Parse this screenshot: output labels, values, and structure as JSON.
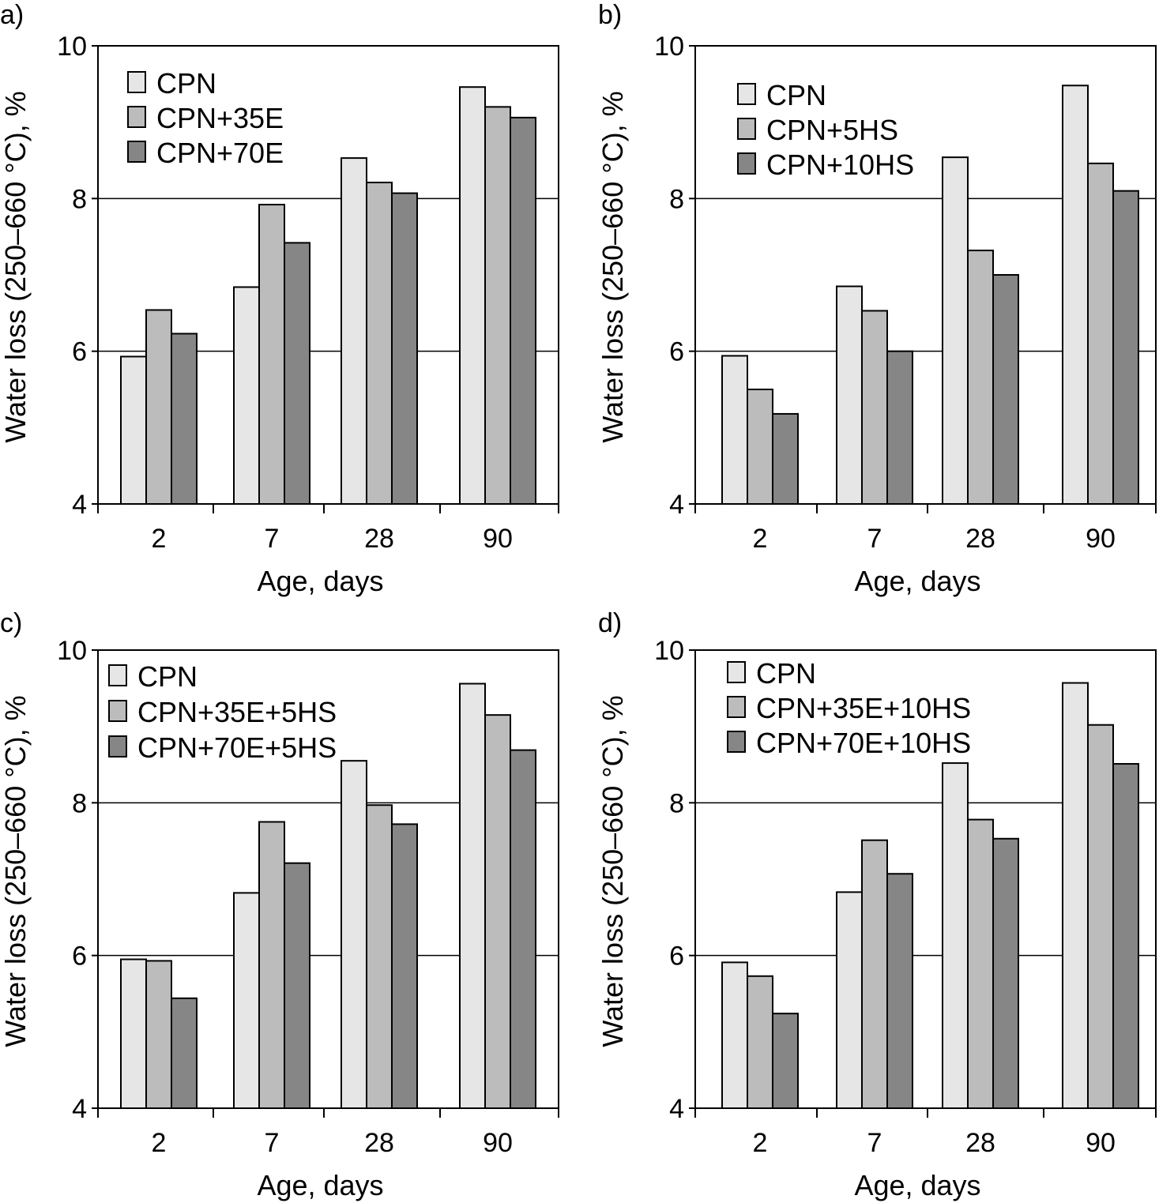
{
  "colors": {
    "series": [
      "#e6e6e6",
      "#bcbcbc",
      "#868686"
    ],
    "stroke": "#000000",
    "background": "#ffffff"
  },
  "chart_data": [
    {
      "panel_label": "a)",
      "type": "bar",
      "xlabel": "Age, days",
      "ylabel": "Water loss (250–660 °C), %",
      "ylim": [
        4,
        10
      ],
      "yticks": [
        "4",
        "6",
        "8",
        "10"
      ],
      "grid": "horizontal at 6 and 8",
      "legend_position": "top-left",
      "categories": [
        "2",
        "7",
        "28",
        "90"
      ],
      "series": [
        {
          "name": "CPN",
          "values": [
            5.93,
            6.84,
            8.53,
            9.46
          ]
        },
        {
          "name": "CPN+35E",
          "values": [
            6.54,
            7.92,
            8.21,
            9.2
          ]
        },
        {
          "name": "CPN+70E",
          "values": [
            6.23,
            7.42,
            8.07,
            9.06
          ]
        }
      ]
    },
    {
      "panel_label": "b)",
      "type": "bar",
      "xlabel": "Age, days",
      "ylabel": "Water loss (250–660 °C), %",
      "ylim": [
        4,
        10
      ],
      "yticks": [
        "4",
        "6",
        "8",
        "10"
      ],
      "grid": "horizontal at 6 and 8",
      "legend_position": "top-left",
      "categories": [
        "2",
        "7",
        "28",
        "90"
      ],
      "series": [
        {
          "name": "CPN",
          "values": [
            5.94,
            6.85,
            8.54,
            9.48
          ]
        },
        {
          "name": "CPN+5HS",
          "values": [
            5.5,
            6.53,
            7.32,
            8.46
          ]
        },
        {
          "name": "CPN+10HS",
          "values": [
            5.18,
            6.0,
            7.0,
            8.1
          ]
        }
      ]
    },
    {
      "panel_label": "c)",
      "type": "bar",
      "xlabel": "Age, days",
      "ylabel": "Water loss (250–660 °C), %",
      "ylim": [
        4,
        10
      ],
      "yticks": [
        "4",
        "6",
        "8",
        "10"
      ],
      "grid": "horizontal at 6 and 8",
      "legend_position": "top-left",
      "categories": [
        "2",
        "7",
        "28",
        "90"
      ],
      "series": [
        {
          "name": "CPN",
          "values": [
            5.95,
            6.82,
            8.55,
            9.56
          ]
        },
        {
          "name": "CPN+35E+5HS",
          "values": [
            5.93,
            7.75,
            7.97,
            9.15
          ]
        },
        {
          "name": "CPN+70E+5HS",
          "values": [
            5.44,
            7.21,
            7.72,
            8.69
          ]
        }
      ]
    },
    {
      "panel_label": "d)",
      "type": "bar",
      "xlabel": "Age, days",
      "ylabel": "Water loss (250–660 °C), %",
      "ylim": [
        4,
        10
      ],
      "yticks": [
        "4",
        "6",
        "8",
        "10"
      ],
      "grid": "horizontal at 6 and 8",
      "legend_position": "top-left",
      "categories": [
        "2",
        "7",
        "28",
        "90"
      ],
      "series": [
        {
          "name": "CPN",
          "values": [
            5.91,
            6.83,
            8.52,
            9.57
          ]
        },
        {
          "name": "CPN+35E+10HS",
          "values": [
            5.73,
            7.51,
            7.78,
            9.02
          ]
        },
        {
          "name": "CPN+70E+10HS",
          "values": [
            5.24,
            7.07,
            7.53,
            8.51
          ]
        }
      ]
    }
  ]
}
